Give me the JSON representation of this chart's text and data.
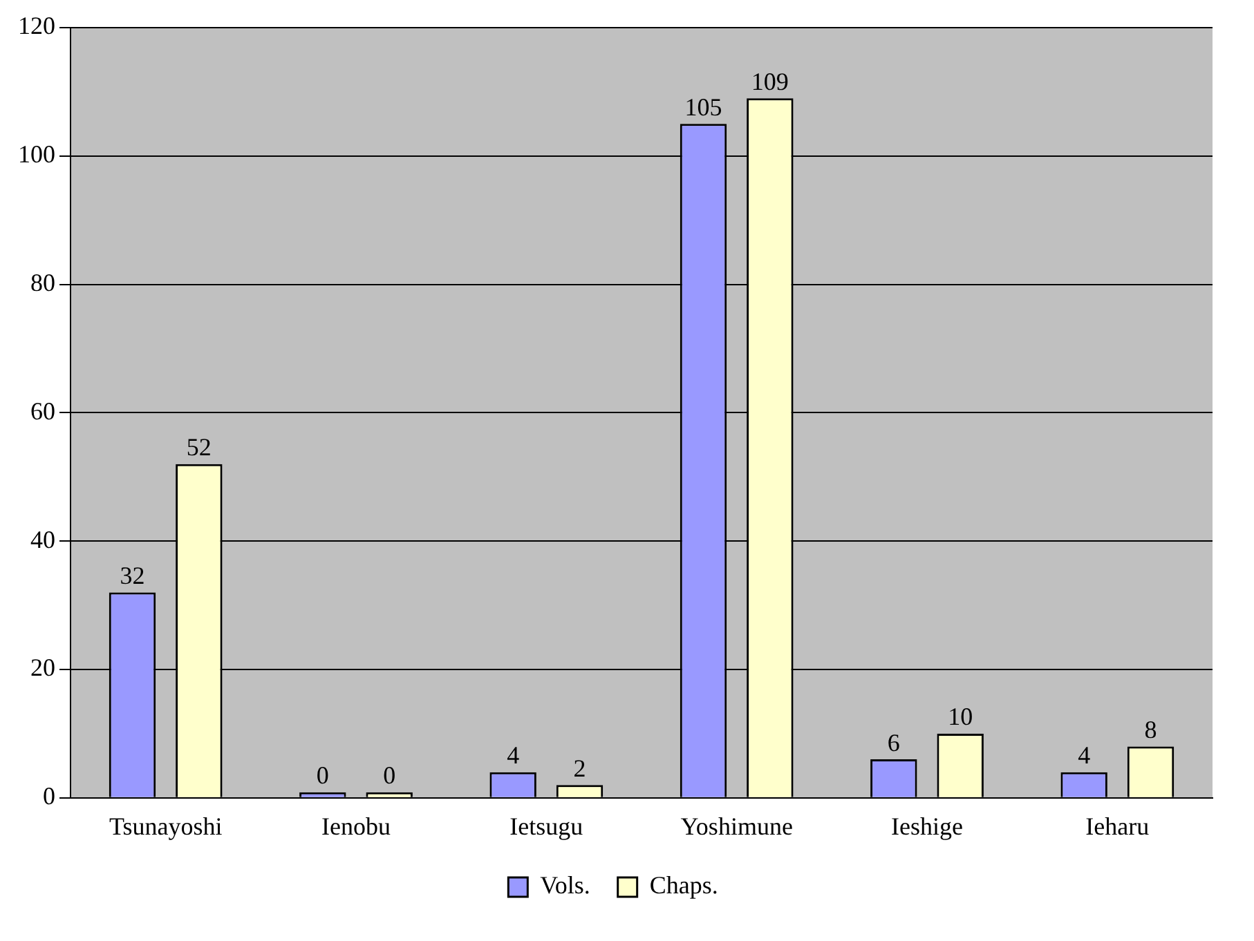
{
  "chart_data": {
    "type": "bar",
    "categories": [
      "Tsunayoshi",
      "Ienobu",
      "Ietsugu",
      "Yoshimune",
      "Ieshige",
      "Ieharu"
    ],
    "series": [
      {
        "name": "Vols.",
        "color": "#9999ff",
        "values": [
          32,
          0,
          4,
          105,
          6,
          4
        ]
      },
      {
        "name": "Chaps.",
        "color": "#ffffcc",
        "values": [
          52,
          0,
          2,
          109,
          10,
          8
        ]
      }
    ],
    "ylim": [
      0,
      120
    ],
    "yticks": [
      0,
      20,
      40,
      60,
      80,
      100,
      120
    ],
    "grid": "y",
    "legend": "bottom",
    "data_labels": true
  }
}
